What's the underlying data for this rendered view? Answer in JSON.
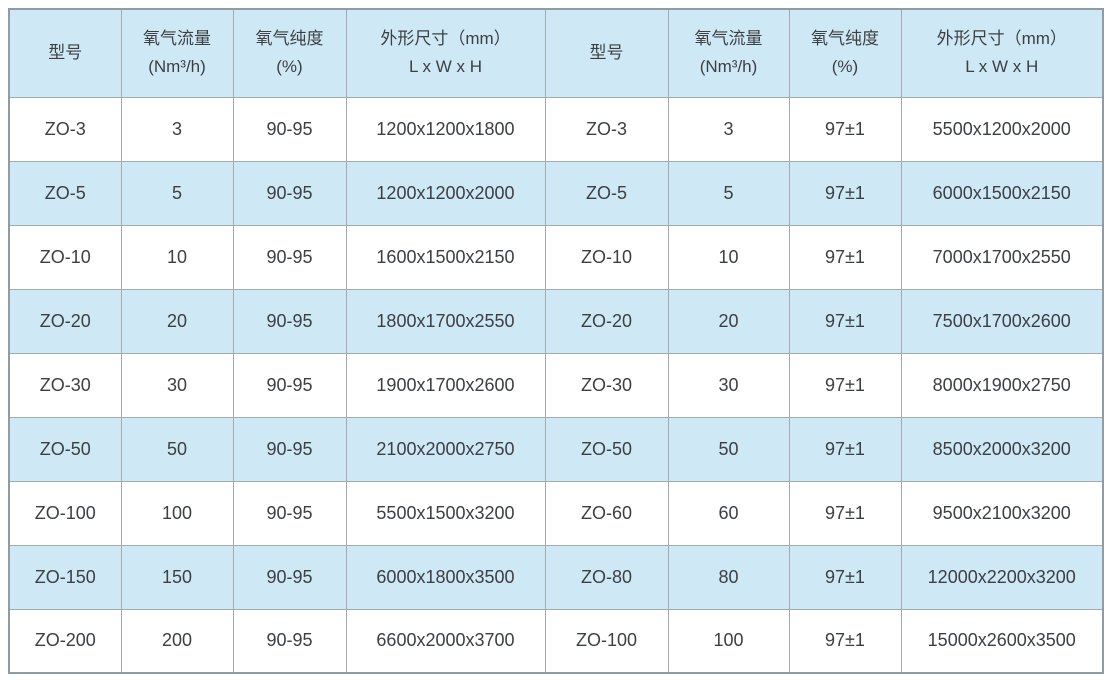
{
  "colors": {
    "header_bg": "#cfe8f6",
    "stripe_bg": "#cfe8f6",
    "row_bg": "#ffffff",
    "border_outer": "#8e9ca6",
    "border_inner": "#a2a9af",
    "text": "#3c4043"
  },
  "chart_data": {
    "type": "table",
    "headers": [
      {
        "line1": "型号",
        "line2": ""
      },
      {
        "line1": "氧气流量",
        "line2": "(Nm³/h)"
      },
      {
        "line1": "氧气纯度",
        "line2": "(%)"
      },
      {
        "line1": "外形尺寸（mm）",
        "line2": "L x W x H"
      },
      {
        "line1": "型号",
        "line2": ""
      },
      {
        "line1": "氧气流量",
        "line2": "(Nm³/h)"
      },
      {
        "line1": "氧气纯度",
        "line2": "(%)"
      },
      {
        "line1": "外形尺寸（mm）",
        "line2": "L x W x H"
      }
    ],
    "column_names": [
      "model-left",
      "flow-left",
      "purity-left",
      "dimensions-left",
      "model-right",
      "flow-right",
      "purity-right",
      "dimensions-right"
    ],
    "rows": [
      [
        "ZO-3",
        "3",
        "90-95",
        "1200x1200x1800",
        "ZO-3",
        "3",
        "97±1",
        "5500x1200x2000"
      ],
      [
        "ZO-5",
        "5",
        "90-95",
        "1200x1200x2000",
        "ZO-5",
        "5",
        "97±1",
        "6000x1500x2150"
      ],
      [
        "ZO-10",
        "10",
        "90-95",
        "1600x1500x2150",
        "ZO-10",
        "10",
        "97±1",
        "7000x1700x2550"
      ],
      [
        "ZO-20",
        "20",
        "90-95",
        "1800x1700x2550",
        "ZO-20",
        "20",
        "97±1",
        "7500x1700x2600"
      ],
      [
        "ZO-30",
        "30",
        "90-95",
        "1900x1700x2600",
        "ZO-30",
        "30",
        "97±1",
        "8000x1900x2750"
      ],
      [
        "ZO-50",
        "50",
        "90-95",
        "2100x2000x2750",
        "ZO-50",
        "50",
        "97±1",
        "8500x2000x3200"
      ],
      [
        "ZO-100",
        "100",
        "90-95",
        "5500x1500x3200",
        "ZO-60",
        "60",
        "97±1",
        "9500x2100x3200"
      ],
      [
        "ZO-150",
        "150",
        "90-95",
        "6000x1800x3500",
        "ZO-80",
        "80",
        "97±1",
        "12000x2200x3200"
      ],
      [
        "ZO-200",
        "200",
        "90-95",
        "6600x2000x3700",
        "ZO-100",
        "100",
        "97±1",
        "15000x2600x3500"
      ]
    ]
  }
}
